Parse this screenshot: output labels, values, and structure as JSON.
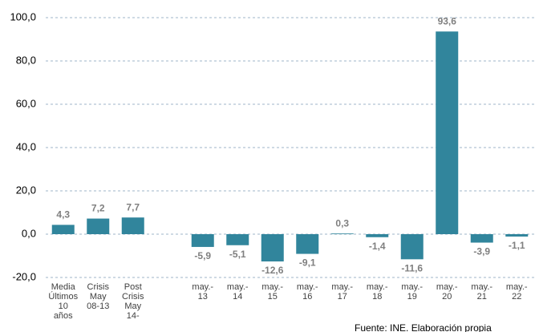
{
  "chart_data": {
    "type": "bar",
    "categories": [
      "Media\nÚltimos\n10\naños",
      "Crisis\nMay\n08-13",
      "Post\nCrisis\nMay\n14-",
      null,
      "may.-\n13",
      "may.-\n14",
      "may.-\n15",
      "may.-\n16",
      "may.-\n17",
      "may.-\n18",
      "may.-\n19",
      "may.-\n20",
      "may.-\n21",
      "may.-\n22"
    ],
    "values": [
      4.3,
      7.2,
      7.7,
      null,
      -5.9,
      -5.1,
      -12.6,
      -9.1,
      0.3,
      -1.4,
      -11.6,
      93.6,
      -3.9,
      -1.1
    ],
    "value_labels": [
      "4,3",
      "7,2",
      "7,7",
      null,
      "-5,9",
      "-5,1",
      "-12,6",
      "-9,1",
      "0,3",
      "-1,4",
      "-11,6",
      "93,6",
      "-3,9",
      "-1,1"
    ],
    "color": "#31859c",
    "ylim": [
      -20,
      100
    ],
    "yticks": [
      {
        "value": -20,
        "label": "-20,0"
      },
      {
        "value": 0,
        "label": "0,0"
      },
      {
        "value": 20,
        "label": "20,0"
      },
      {
        "value": 40,
        "label": "40,0"
      },
      {
        "value": 60,
        "label": "60,0"
      },
      {
        "value": 80,
        "label": "80,0"
      },
      {
        "value": 100,
        "label": "100,0"
      }
    ],
    "grid": true,
    "source": "Fuente: INE. Elaboración propia"
  }
}
